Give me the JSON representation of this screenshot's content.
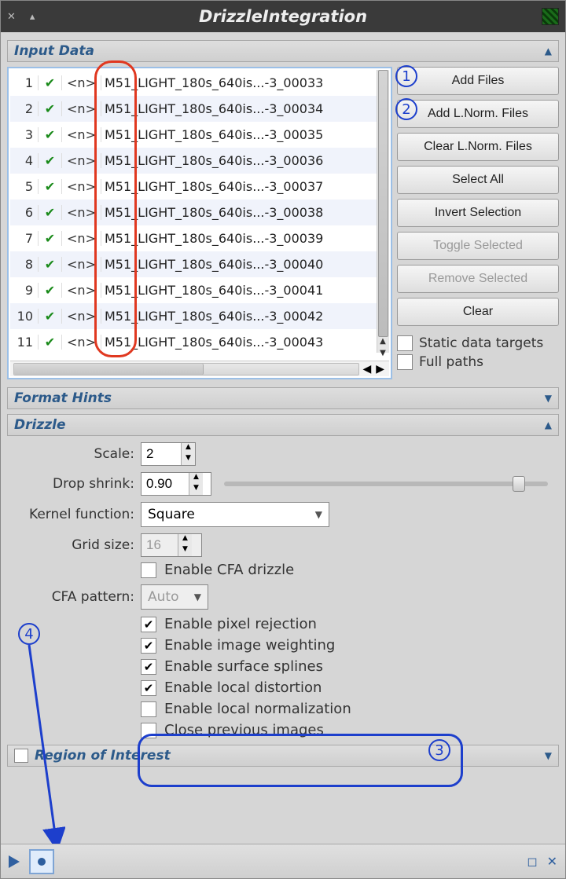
{
  "title": "DrizzleIntegration",
  "sections": {
    "input_data": "Input Data",
    "format_hints": "Format Hints",
    "drizzle": "Drizzle",
    "roi": "Region of Interest"
  },
  "files": [
    {
      "idx": 1,
      "tag": "<n>",
      "name": "M51_LIGHT_180s_640is...-3_00033"
    },
    {
      "idx": 2,
      "tag": "<n>",
      "name": "M51_LIGHT_180s_640is...-3_00034"
    },
    {
      "idx": 3,
      "tag": "<n>",
      "name": "M51_LIGHT_180s_640is...-3_00035"
    },
    {
      "idx": 4,
      "tag": "<n>",
      "name": "M51_LIGHT_180s_640is...-3_00036"
    },
    {
      "idx": 5,
      "tag": "<n>",
      "name": "M51_LIGHT_180s_640is...-3_00037"
    },
    {
      "idx": 6,
      "tag": "<n>",
      "name": "M51_LIGHT_180s_640is...-3_00038"
    },
    {
      "idx": 7,
      "tag": "<n>",
      "name": "M51_LIGHT_180s_640is...-3_00039"
    },
    {
      "idx": 8,
      "tag": "<n>",
      "name": "M51_LIGHT_180s_640is...-3_00040"
    },
    {
      "idx": 9,
      "tag": "<n>",
      "name": "M51_LIGHT_180s_640is...-3_00041"
    },
    {
      "idx": 10,
      "tag": "<n>",
      "name": "M51_LIGHT_180s_640is...-3_00042"
    },
    {
      "idx": 11,
      "tag": "<n>",
      "name": "M51_LIGHT_180s_640is...-3_00043"
    }
  ],
  "buttons": {
    "add_files": "Add Files",
    "add_lnorm": "Add L.Norm. Files",
    "clear_lnorm": "Clear L.Norm. Files",
    "select_all": "Select All",
    "invert_sel": "Invert Selection",
    "toggle_sel": "Toggle Selected",
    "remove_sel": "Remove Selected",
    "clear": "Clear"
  },
  "side_checks": {
    "static_targets": "Static data targets",
    "full_paths": "Full paths"
  },
  "drizzle_form": {
    "scale_label": "Scale:",
    "scale_value": "2",
    "drop_label": "Drop shrink:",
    "drop_value": "0.90",
    "drop_slider_pct": 89,
    "kernel_label": "Kernel function:",
    "kernel_value": "Square",
    "grid_label": "Grid size:",
    "grid_value": "16",
    "cfa_pattern_label": "CFA pattern:",
    "cfa_pattern_value": "Auto",
    "enable_cfa": "Enable CFA drizzle",
    "enable_pixel_rej": "Enable pixel rejection",
    "enable_img_weight": "Enable image weighting",
    "enable_surf_splines": "Enable surface splines",
    "enable_local_dist": "Enable local distortion",
    "enable_local_norm": "Enable local normalization",
    "close_prev": "Close previous images"
  },
  "annotations": {
    "a1": "1",
    "a2": "2",
    "a3": "3",
    "a4": "4"
  },
  "colors": {
    "annot_blue": "#1d3fcc",
    "annot_red": "#e03820"
  }
}
